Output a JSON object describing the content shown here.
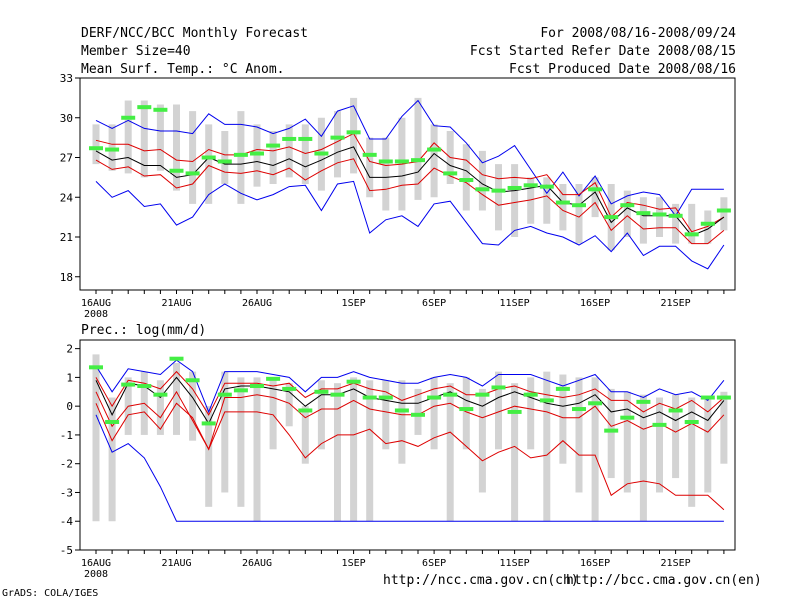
{
  "header": {
    "title": "DERF/NCC/BCC Monthly Forecast",
    "member": "Member Size=40",
    "variable": "Mean Surf. Temp.: °C Anom.",
    "period": "For 2008/08/16-2008/09/24",
    "refer_date": "Fcst Started Refer Date 2008/08/15",
    "produced_date": "Fcst Produced Date 2008/08/16"
  },
  "footer": {
    "credit": "GrADS: COLA/IGES",
    "url_ncc": "http://ncc.cma.gov.cn(ch)",
    "url_bcc": "http://bcc.cma.gov.cn(en)"
  },
  "colors": {
    "bar": "#d3d3d3",
    "obs": "#44ee44",
    "mean": "#000000",
    "spread": "#dd0000",
    "envelope": "#0000ee"
  },
  "chart_data": [
    {
      "type": "line",
      "name": "temperature",
      "title": "Mean Surf. Temp.: °C Anom.",
      "ylim": [
        17,
        33
      ],
      "yticks": [
        "18",
        "21",
        "24",
        "27",
        "30",
        "33"
      ],
      "x_labels": [
        "16AUG",
        "21AUG",
        "26AUG",
        "1SEP",
        "6SEP",
        "11SEP",
        "16SEP",
        "21SEP"
      ],
      "x_label_days": [
        0,
        5,
        10,
        16,
        21,
        26,
        31,
        36
      ],
      "x_sublabel": "2008",
      "days": 40,
      "series": [
        {
          "name": "max",
          "values": [
            25.2,
            24,
            24.5,
            23.3,
            23.5,
            21.9,
            22.5,
            24.2,
            25,
            24.3,
            23.8,
            24.2,
            24.8,
            24.9,
            23,
            25,
            25.2,
            21.3,
            22.3,
            22.6,
            21.8,
            23.5,
            23.7,
            22.1,
            20.5,
            20.4,
            21.5,
            21.8,
            21.3,
            21,
            20.4,
            21.1,
            19.9,
            21.3,
            19.6,
            20.3,
            20.3,
            19.2,
            18.6,
            20.4
          ]
        },
        {
          "name": "min",
          "values": [
            29.8,
            29.2,
            29.8,
            29.2,
            29,
            29,
            28.8,
            30.3,
            29.5,
            29.5,
            29.3,
            28.8,
            29.2,
            29.9,
            28.6,
            30.5,
            30.9,
            28.4,
            28.4,
            30.1,
            31.3,
            29.4,
            29.3,
            28.1,
            26.6,
            27.1,
            27.9,
            26.1,
            24.3,
            25.9,
            24.1,
            25.6,
            23.5,
            24.1,
            24.4,
            24.2,
            22.6,
            24.6,
            24.6,
            24.6
          ]
        },
        {
          "name": "upper",
          "values": [
            28.3,
            28,
            28,
            27.5,
            27.6,
            26.8,
            26.7,
            27.6,
            27.2,
            27.2,
            27.6,
            27.5,
            27.8,
            27.3,
            27.6,
            28.2,
            28.8,
            26.7,
            26.4,
            26.5,
            26.7,
            28.1,
            27,
            26.8,
            25.7,
            25.4,
            25.5,
            25.4,
            25.7,
            24.2,
            24.2,
            25.1,
            22.5,
            23.6,
            23.4,
            23.1,
            23.2,
            21.4,
            21.8,
            22.5
          ]
        },
        {
          "name": "mean",
          "values": [
            27.5,
            26.8,
            27,
            26.4,
            26.4,
            25.5,
            25.7,
            27,
            26.5,
            26.5,
            26.7,
            26.4,
            26.9,
            26.3,
            26.8,
            27.4,
            27.8,
            25.5,
            25.5,
            25.6,
            25.9,
            27.3,
            26.4,
            26,
            25,
            24.4,
            24.5,
            24.7,
            24.9,
            23.6,
            23.4,
            24.4,
            22.1,
            23.2,
            22.6,
            22.6,
            22.6,
            21.1,
            21.6,
            22.5
          ]
        },
        {
          "name": "lower",
          "values": [
            26.8,
            26.1,
            26.3,
            25.6,
            25.7,
            24.7,
            25,
            26.4,
            25.9,
            25.8,
            26,
            25.7,
            26.2,
            25.3,
            26,
            26.6,
            26.9,
            24.5,
            24.6,
            24.9,
            25,
            26.2,
            25.6,
            25.1,
            24.2,
            23.4,
            23.6,
            23.8,
            24.1,
            23,
            22.5,
            23.6,
            21.5,
            22.6,
            21.6,
            21.7,
            21.7,
            20.5,
            20.5,
            21.5
          ]
        },
        {
          "name": "bar_low",
          "values": [
            26.5,
            26,
            25.8,
            25.5,
            26,
            24.5,
            23.5,
            23.5,
            25,
            23.5,
            24.8,
            25,
            25.5,
            25,
            24.5,
            25.5,
            25.8,
            24,
            23,
            23,
            23.8,
            24,
            25,
            23,
            23,
            21.5,
            21,
            22,
            22,
            21.5,
            20.5,
            22.5,
            20,
            21,
            20.5,
            21,
            20.5,
            20.5,
            20.5,
            21.5
          ]
        },
        {
          "name": "bar_high",
          "values": [
            29.5,
            29.5,
            31.3,
            31.3,
            31,
            31,
            30.5,
            29.5,
            29,
            30.5,
            29.5,
            29,
            29.5,
            29.5,
            30,
            30.5,
            31.5,
            28.5,
            28.5,
            30,
            31.5,
            29.5,
            29,
            28,
            27.5,
            26.5,
            26.5,
            25.5,
            25.5,
            25,
            25,
            25.5,
            25,
            24.5,
            24,
            24,
            23.5,
            23.5,
            23,
            24
          ]
        },
        {
          "name": "observed",
          "values": [
            27.7,
            27.6,
            30,
            30.8,
            30.6,
            26,
            25.8,
            27,
            26.7,
            27.2,
            27.3,
            27.9,
            28.4,
            28.4,
            27.3,
            28.5,
            28.9,
            27.2,
            26.7,
            26.7,
            26.8,
            27.6,
            25.8,
            25.3,
            24.6,
            24.5,
            24.7,
            24.9,
            24.8,
            23.6,
            23.4,
            24.6,
            22.5,
            23.4,
            22.8,
            22.7,
            22.6,
            21.2,
            22,
            23
          ]
        }
      ]
    },
    {
      "type": "line",
      "name": "precipitation",
      "title": "Prec.: log(mm/d)",
      "ylim": [
        -5,
        2.3
      ],
      "yticks": [
        "-5",
        "-4",
        "-3",
        "-2",
        "-1",
        "0",
        "1",
        "2"
      ],
      "x_labels": [
        "16AUG",
        "21AUG",
        "26AUG",
        "1SEP",
        "6SEP",
        "11SEP",
        "16SEP",
        "21SEP"
      ],
      "x_label_days": [
        0,
        5,
        10,
        16,
        21,
        26,
        31,
        36
      ],
      "x_sublabel": "2008",
      "days": 40,
      "series": [
        {
          "name": "max",
          "values": [
            1.4,
            0.5,
            1.3,
            1.2,
            1.1,
            1.6,
            1.2,
            -0.2,
            1.2,
            1.2,
            1.2,
            1.1,
            1,
            0.5,
            1,
            1,
            1.2,
            1,
            0.9,
            0.8,
            0.8,
            1,
            1.1,
            1,
            0.7,
            1.1,
            1.1,
            1.1,
            0.9,
            0.7,
            0.9,
            1.1,
            0.5,
            0.5,
            0.3,
            0.6,
            0.4,
            0.5,
            0.2,
            0.9
          ]
        },
        {
          "name": "min",
          "values": [
            -0.3,
            -1.6,
            -1.3,
            -1.8,
            -2.8,
            -4,
            -4,
            -4,
            -4,
            -4,
            -4,
            -4,
            -4,
            -4,
            -4,
            -4,
            -4,
            -4,
            -4,
            -4,
            -4,
            -4,
            -4,
            -4,
            -4,
            -4,
            -4,
            -4,
            -4,
            -4,
            -4,
            -4,
            -4,
            -4,
            -4,
            -4,
            -4,
            -4,
            -4,
            -4
          ]
        },
        {
          "name": "upper",
          "values": [
            1,
            0,
            0.9,
            0.8,
            0.6,
            1.2,
            0.6,
            -0.3,
            0.8,
            0.8,
            0.8,
            0.7,
            0.8,
            0.3,
            0.6,
            0.6,
            0.8,
            0.6,
            0.5,
            0.2,
            0.4,
            0.6,
            0.7,
            0.4,
            0.4,
            0.6,
            0.7,
            0.5,
            0.4,
            0.3,
            0.4,
            0.6,
            0.2,
            0.2,
            -0.2,
            0.1,
            -0.1,
            0.2,
            -0.2,
            0.3
          ]
        },
        {
          "name": "mean",
          "values": [
            0.9,
            -0.3,
            0.8,
            0.7,
            0.3,
            1,
            0.3,
            -0.6,
            0.6,
            0.7,
            0.7,
            0.6,
            0.5,
            0,
            0.4,
            0.4,
            0.6,
            0.3,
            0.2,
            0.1,
            0.1,
            0.3,
            0.5,
            0.2,
            0,
            0.3,
            0.5,
            0.3,
            0.1,
            0,
            0.1,
            0.4,
            -0.2,
            -0.1,
            -0.4,
            -0.2,
            -0.5,
            -0.2,
            -0.5,
            0.2
          ]
        },
        {
          "name": "lower",
          "values": [
            0.5,
            -0.7,
            0,
            0.1,
            -0.4,
            0.5,
            -0.5,
            -1.5,
            0.3,
            0.3,
            0.4,
            0.3,
            0.1,
            -0.4,
            -0.1,
            -0.1,
            0.2,
            -0.1,
            -0.2,
            -0.3,
            -0.3,
            0,
            0.1,
            -0.2,
            -0.4,
            -0.2,
            0,
            -0.1,
            -0.2,
            -0.4,
            -0.4,
            0,
            -0.7,
            -0.5,
            -0.8,
            -0.6,
            -0.9,
            -0.6,
            -0.9,
            -0.3
          ]
        },
        {
          "name": "low_line",
          "values": [
            0.1,
            -1.2,
            -0.3,
            -0.2,
            -0.8,
            0.1,
            -0.4,
            -1.5,
            -0.2,
            -0.2,
            -0.2,
            -0.3,
            -1,
            -1.8,
            -1.3,
            -1,
            -1,
            -0.8,
            -1.3,
            -1.2,
            -1.4,
            -1.1,
            -0.9,
            -1.4,
            -1.9,
            -1.6,
            -1.4,
            -1.8,
            -1.7,
            -1.2,
            -1.7,
            -1.7,
            -3.1,
            -2.7,
            -2.6,
            -2.7,
            -3.1,
            -3.1,
            -3.1,
            -3.6
          ]
        },
        {
          "name": "bar_low",
          "values": [
            -4,
            -4,
            -1,
            -1,
            -1,
            -1,
            -1.2,
            -3.5,
            -3,
            -3.5,
            -4,
            -1.5,
            -0.7,
            -2,
            -1.5,
            -4,
            -4,
            -4,
            -1.5,
            -2,
            -1,
            -1.5,
            -4,
            -1.5,
            -3,
            -1.5,
            -4,
            -1.5,
            -4,
            -2,
            -3,
            -4,
            -2.5,
            -3,
            -4,
            -3,
            -2.5,
            -3.5,
            -3,
            -2
          ]
        },
        {
          "name": "bar_high",
          "values": [
            1.8,
            0.3,
            1,
            1.2,
            0.9,
            1.5,
            1.2,
            0,
            1.2,
            1,
            1,
            0.9,
            0.8,
            0,
            0.9,
            0.8,
            1,
            0.9,
            0.9,
            0.9,
            0.6,
            1,
            0.8,
            1,
            0.6,
            1.2,
            0.8,
            1,
            1.2,
            1.1,
            1,
            1,
            0.6,
            0.5,
            0.4,
            0.3,
            0.4,
            0.3,
            0.3,
            0.5
          ]
        },
        {
          "name": "observed",
          "values": [
            1.35,
            -0.55,
            0.75,
            0.7,
            0.4,
            1.65,
            0.9,
            -0.6,
            0.4,
            0.55,
            0.7,
            0.95,
            0.6,
            -0.15,
            0.5,
            0.4,
            0.85,
            0.3,
            0.3,
            -0.15,
            -0.3,
            0.3,
            0.4,
            -0.1,
            0.4,
            0.65,
            -0.2,
            0.4,
            0.2,
            0.6,
            -0.1,
            0.1,
            -0.85,
            -0.4,
            0.15,
            -0.65,
            -0.15,
            -0.55,
            0.3,
            0.3
          ]
        }
      ]
    }
  ]
}
